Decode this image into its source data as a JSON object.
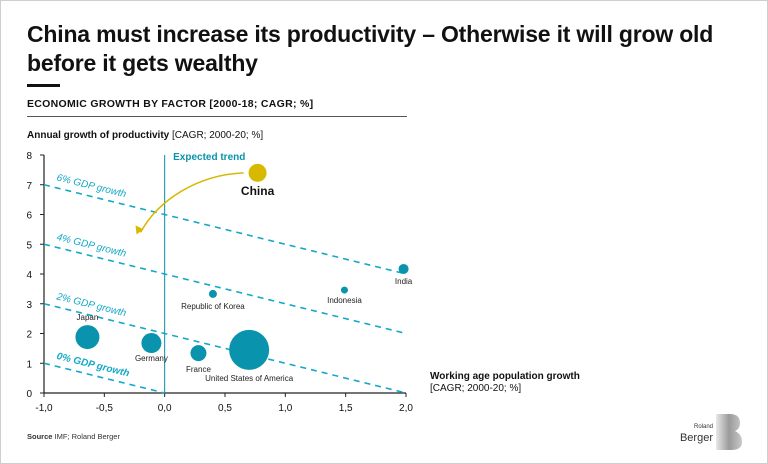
{
  "title": "China must increase its productivity – Otherwise it will grow old before it gets wealthy",
  "subtitle": "ECONOMIC GROWTH BY FACTOR [2000-18; CAGR; %]",
  "source_label": "Source",
  "source_text": "IMF; Roland Berger",
  "logo": {
    "line1": "Roland",
    "line2": "Berger"
  },
  "chart_data": {
    "type": "scatter",
    "ylabel_bold": "Annual growth of productivity",
    "ylabel_rest": "[CAGR; 2000-20; %]",
    "xlabel_bold": "Working age population growth",
    "xlabel_rest": "[CAGR; 2000-20; %]",
    "xlim": [
      -1.0,
      2.0
    ],
    "ylim": [
      0,
      8
    ],
    "xticks": [
      "-1,0",
      "-0,5",
      "0,0",
      "0,5",
      "1,0",
      "1,5",
      "2,0"
    ],
    "xtick_values": [
      -1,
      -0.5,
      0,
      0.5,
      1,
      1.5,
      2
    ],
    "yticks": [
      "0",
      "1",
      "2",
      "3",
      "4",
      "5",
      "6",
      "7",
      "8"
    ],
    "grid": false,
    "colors": {
      "points": "#0a93ad",
      "china": "#d9b800",
      "lines": "#14a9c6",
      "arrow": "#d9b800"
    },
    "gdp_lines": [
      {
        "label": "6% GDP growth",
        "value": 6
      },
      {
        "label": "4% GDP growth",
        "value": 4
      },
      {
        "label": "2% GDP growth",
        "value": 2
      },
      {
        "label": "0% GDP growth",
        "value": 0
      }
    ],
    "points": [
      {
        "name": "China",
        "x": 0.77,
        "y": 7.4,
        "size": 9,
        "highlight": true
      },
      {
        "name": "Republic of Korea",
        "x": 0.4,
        "y": 3.33,
        "size": 4
      },
      {
        "name": "Indonesia",
        "x": 1.49,
        "y": 3.46,
        "size": 3.5
      },
      {
        "name": "India",
        "x": 1.98,
        "y": 4.17,
        "size": 5
      },
      {
        "name": "Japan",
        "x": -0.64,
        "y": 1.88,
        "size": 12
      },
      {
        "name": "Germany",
        "x": -0.11,
        "y": 1.68,
        "size": 10
      },
      {
        "name": "France",
        "x": 0.28,
        "y": 1.34,
        "size": 8
      },
      {
        "name": "United States of America",
        "x": 0.7,
        "y": 1.45,
        "size": 20
      }
    ],
    "annotation": "Expected trend"
  }
}
